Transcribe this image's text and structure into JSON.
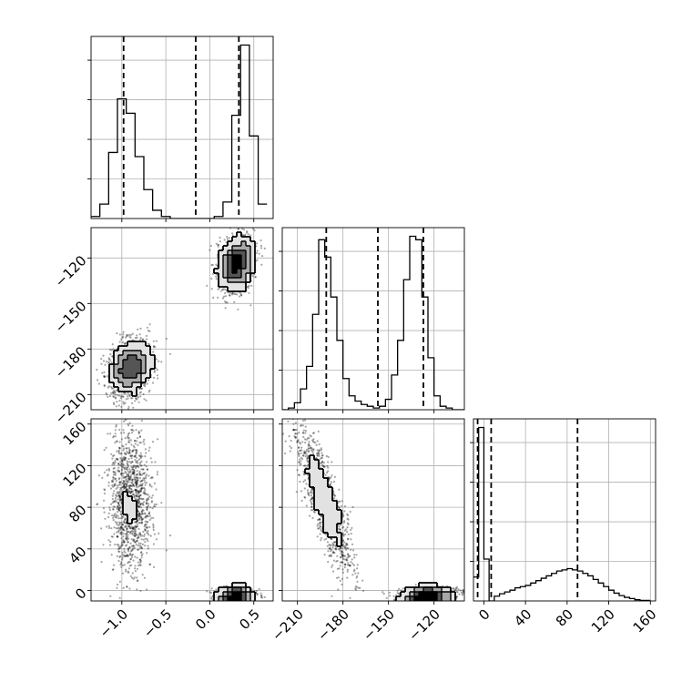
{
  "chart_data": {
    "type": "corner",
    "parameters": [
      "",
      "",
      ""
    ],
    "grid": true,
    "colors": {
      "ink": "#000000",
      "grid": "#b0b0b0",
      "scatter": "#000000"
    },
    "ticks": {
      "p0": [
        "−1.0",
        "−0.5",
        "0.0",
        "0.5"
      ],
      "p1": [
        "−210",
        "−180",
        "−150",
        "−120"
      ],
      "p2": [
        "0",
        "40",
        "80",
        "120",
        "160"
      ]
    },
    "tick_values": {
      "p0": [
        -1.0,
        -0.5,
        0.0,
        0.5
      ],
      "p1": [
        -210,
        -180,
        -150,
        -120
      ],
      "p2": [
        0,
        40,
        80,
        120,
        160
      ]
    },
    "ranges": {
      "p0": [
        -1.35,
        0.72
      ],
      "p1": [
        -220,
        -100
      ],
      "p2": [
        -10,
        165
      ]
    },
    "quantile_lines": {
      "p0": [
        -0.98,
        -0.16,
        0.33
      ],
      "p1": [
        -191,
        -157,
        -127
      ],
      "p2": [
        -6,
        7,
        90
      ]
    },
    "histograms": {
      "p0": {
        "edges": [
          -1.35,
          -1.25,
          -1.15,
          -1.05,
          -0.95,
          -0.85,
          -0.75,
          -0.65,
          -0.55,
          -0.45,
          -0.35,
          -0.25,
          -0.15,
          -0.05,
          0.05,
          0.15,
          0.25,
          0.35,
          0.45,
          0.55,
          0.65
        ],
        "counts": [
          1,
          7,
          32,
          58,
          51,
          30,
          14,
          4,
          1,
          0,
          0,
          0,
          0,
          0,
          1,
          8,
          50,
          84,
          40,
          7
        ]
      },
      "p1": {
        "edges": [
          -220,
          -216,
          -212,
          -208,
          -204,
          -200,
          -196,
          -192,
          -188,
          -184,
          -180,
          -176,
          -172,
          -168,
          -164,
          -160,
          -156,
          -152,
          -148,
          -144,
          -140,
          -136,
          -132,
          -128,
          -124,
          -120,
          -116,
          -112,
          -108,
          -104,
          -100
        ],
        "counts": [
          0,
          1,
          4,
          12,
          25,
          55,
          98,
          88,
          65,
          40,
          18,
          8,
          5,
          3,
          2,
          1,
          2,
          6,
          20,
          40,
          75,
          100,
          98,
          65,
          30,
          8,
          2,
          1,
          0,
          0
        ]
      },
      "p2": {
        "edges": [
          -10,
          -5,
          0,
          5,
          10,
          15,
          20,
          25,
          30,
          35,
          40,
          45,
          50,
          55,
          60,
          65,
          70,
          75,
          80,
          85,
          90,
          95,
          100,
          105,
          110,
          115,
          120,
          125,
          130,
          135,
          140,
          145,
          150,
          155,
          160
        ],
        "counts": [
          40,
          290,
          70,
          0,
          8,
          12,
          15,
          18,
          22,
          24,
          26,
          30,
          34,
          38,
          42,
          46,
          50,
          52,
          54,
          52,
          50,
          46,
          42,
          36,
          30,
          24,
          18,
          13,
          9,
          6,
          4,
          2,
          1,
          1
        ]
      }
    },
    "modes": [
      {
        "weight": 0.5,
        "mu": [
          -0.9,
          -192,
          85
        ],
        "sd": [
          0.12,
          9,
          35
        ],
        "rho": [
          0.2,
          -0.85,
          -0.05
        ]
      },
      {
        "weight": 0.5,
        "mu": [
          0.3,
          -124,
          -5
        ],
        "sd": [
          0.1,
          9,
          4
        ],
        "rho": [
          0.2,
          0.05,
          0.05
        ]
      }
    ]
  }
}
